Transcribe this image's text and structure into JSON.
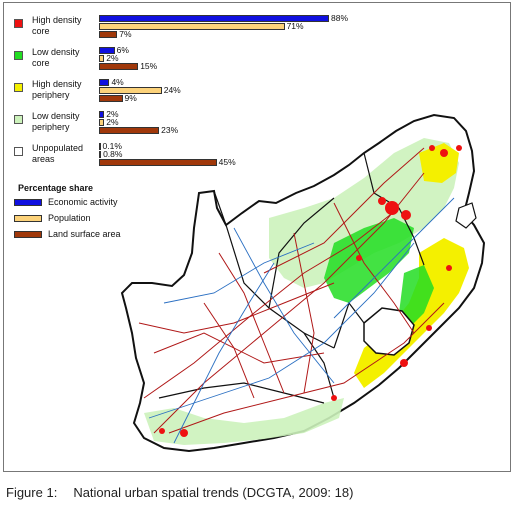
{
  "categories": [
    {
      "name": "High density\ncore",
      "line1": "High density",
      "line2": "core",
      "color": "#ee1111",
      "economic": 88,
      "population": 71,
      "land": 7,
      "labels": [
        "88%",
        "71%",
        "7%"
      ]
    },
    {
      "name": "Low density\ncore",
      "line1": "Low density",
      "line2": "core",
      "color": "#22dd22",
      "economic": 6,
      "population": 2,
      "land": 15,
      "labels": [
        "6%",
        "2%",
        "15%"
      ]
    },
    {
      "name": "High density\nperiphery",
      "line1": "High density",
      "line2": "periphery",
      "color": "#f4f000",
      "economic": 4,
      "population": 24,
      "land": 9,
      "labels": [
        "4%",
        "24%",
        "9%"
      ]
    },
    {
      "name": "Low density\nperiphery",
      "line1": "Low density",
      "line2": "periphery",
      "color": "#ccf2bb",
      "economic": 2,
      "population": 2,
      "land": 23,
      "labels": [
        "2%",
        "2%",
        "23%"
      ]
    },
    {
      "name": "Unpopulated\nareas",
      "line1": "Unpopulated",
      "line2": "areas",
      "color": "#ffffff",
      "economic": 0.1,
      "population": 0.8,
      "land": 45,
      "labels": [
        "0.1%",
        "0.8%",
        "45%"
      ]
    }
  ],
  "share_legend": {
    "title": "Percentage share",
    "items": [
      {
        "label": "Economic activity",
        "color": "#1010e0"
      },
      {
        "label": "Population",
        "color": "#fcd27a"
      },
      {
        "label": "Land surface area",
        "color": "#a0380a"
      }
    ]
  },
  "caption": {
    "figure_number": "Figure 1:",
    "text": "National urban spatial trends (DCGTA, 2009: 18)"
  },
  "colors": {
    "road_major": "#b01818",
    "road_minor": "#2a6fc2",
    "border": "#111111",
    "periphery_low": "#ccf2bb"
  }
}
